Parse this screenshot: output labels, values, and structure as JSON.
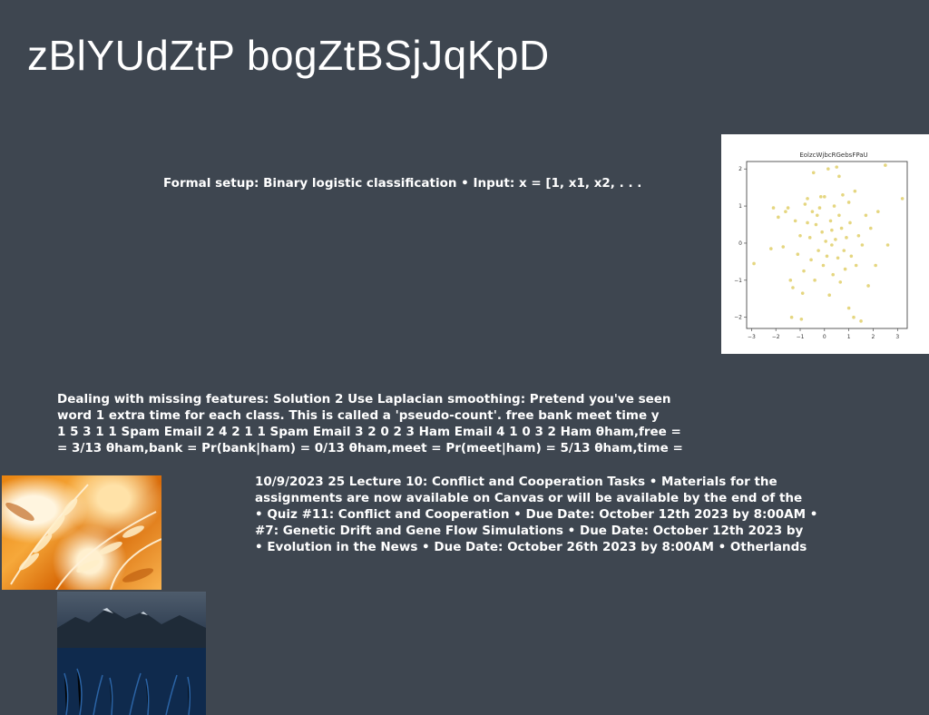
{
  "title": "zBlYUdZtP bogZtBSjJqKpD",
  "text_blocks": {
    "formal_setup": "Formal setup: Binary logistic classification • Input: x = [1, x1, x2, . . .",
    "missing_features": [
      "Dealing with missing features: Solution 2 Use Laplacian smoothing: Pretend you've seen",
      "word 1 extra time for each class. This is called a 'pseudo-count'. free bank meet time y",
      "1 5 3 1 1 Spam Email 2 4 2 1 1 Spam Email 3 2 0 2 3 Ham Email 4 1 0 3 2 Ham θham,free =",
      "= 3/13 θham,bank = Pr(bank|ham) = 0/13 θham,meet = Pr(meet|ham) = 5/13 θham,time ="
    ],
    "lecture": [
      "10/9/2023 25 Lecture 10: Conflict and Cooperation Tasks • Materials for the",
      "assignments are now available on Canvas or will be available by the end of the",
      "• Quiz #11: Conflict and Cooperation • Due Date: October 12th 2023 by 8:00AM •",
      "#7: Genetic Drift and Gene Flow Simulations • Due Date: October 12th 2023 by",
      "• Evolution in the News • Due Date: October 26th 2023 by 8:00AM • Otherlands"
    ]
  },
  "chart_data": {
    "type": "scatter",
    "title": "EolzcWjbcRGebsFPaU",
    "xlabel": "",
    "ylabel": "",
    "xlim": [
      -3.2,
      3.4
    ],
    "ylim": [
      -2.3,
      2.2
    ],
    "xticks": [
      -3,
      -2,
      -1,
      0,
      1,
      2,
      3
    ],
    "yticks": [
      -2,
      -1,
      0,
      1,
      2
    ],
    "grid": false,
    "point_color": "#e0cf6a",
    "points": [
      [
        -2.9,
        -0.55
      ],
      [
        -2.2,
        -0.15
      ],
      [
        -2.1,
        0.95
      ],
      [
        -1.9,
        0.7
      ],
      [
        -1.7,
        -0.1
      ],
      [
        -1.6,
        0.85
      ],
      [
        -1.5,
        0.95
      ],
      [
        -1.4,
        -1.0
      ],
      [
        -1.3,
        -1.2
      ],
      [
        -1.2,
        0.6
      ],
      [
        -1.1,
        -0.3
      ],
      [
        -1.0,
        0.2
      ],
      [
        -0.9,
        -1.35
      ],
      [
        -0.85,
        -0.75
      ],
      [
        -0.8,
        1.05
      ],
      [
        -0.7,
        1.2
      ],
      [
        -0.6,
        0.15
      ],
      [
        -0.55,
        -0.45
      ],
      [
        -0.5,
        0.85
      ],
      [
        -0.45,
        1.9
      ],
      [
        -0.4,
        -1.0
      ],
      [
        -0.35,
        0.5
      ],
      [
        -0.3,
        0.75
      ],
      [
        -0.25,
        -0.2
      ],
      [
        -0.2,
        0.95
      ],
      [
        -0.15,
        1.25
      ],
      [
        -0.1,
        0.3
      ],
      [
        -0.05,
        -0.6
      ],
      [
        0.0,
        1.25
      ],
      [
        0.05,
        0.05
      ],
      [
        0.1,
        -0.35
      ],
      [
        0.15,
        2.0
      ],
      [
        0.2,
        -1.4
      ],
      [
        0.25,
        0.6
      ],
      [
        0.3,
        0.35
      ],
      [
        0.35,
        -0.85
      ],
      [
        0.4,
        1.0
      ],
      [
        0.45,
        0.1
      ],
      [
        0.5,
        2.05
      ],
      [
        0.55,
        -0.4
      ],
      [
        0.6,
        0.75
      ],
      [
        0.65,
        -1.05
      ],
      [
        0.7,
        0.4
      ],
      [
        0.75,
        1.3
      ],
      [
        0.8,
        -0.2
      ],
      [
        0.85,
        -0.7
      ],
      [
        0.9,
        0.15
      ],
      [
        1.0,
        -1.75
      ],
      [
        1.05,
        0.55
      ],
      [
        1.1,
        -0.35
      ],
      [
        1.2,
        -2.0
      ],
      [
        1.25,
        1.4
      ],
      [
        1.3,
        -0.6
      ],
      [
        1.4,
        0.2
      ],
      [
        1.5,
        -2.1
      ],
      [
        1.55,
        -0.05
      ],
      [
        1.7,
        0.75
      ],
      [
        1.8,
        -1.15
      ],
      [
        1.9,
        0.4
      ],
      [
        2.1,
        -0.6
      ],
      [
        2.2,
        0.85
      ],
      [
        2.5,
        2.1
      ],
      [
        2.6,
        -0.05
      ],
      [
        3.2,
        1.2
      ],
      [
        -0.95,
        -2.05
      ],
      [
        -1.35,
        -2.0
      ],
      [
        0.6,
        1.8
      ],
      [
        -0.7,
        0.55
      ],
      [
        0.3,
        -0.05
      ],
      [
        1.0,
        1.1
      ]
    ]
  },
  "images": {
    "fern": "orange fern leaves photo",
    "lake": "mountain lake photo"
  }
}
